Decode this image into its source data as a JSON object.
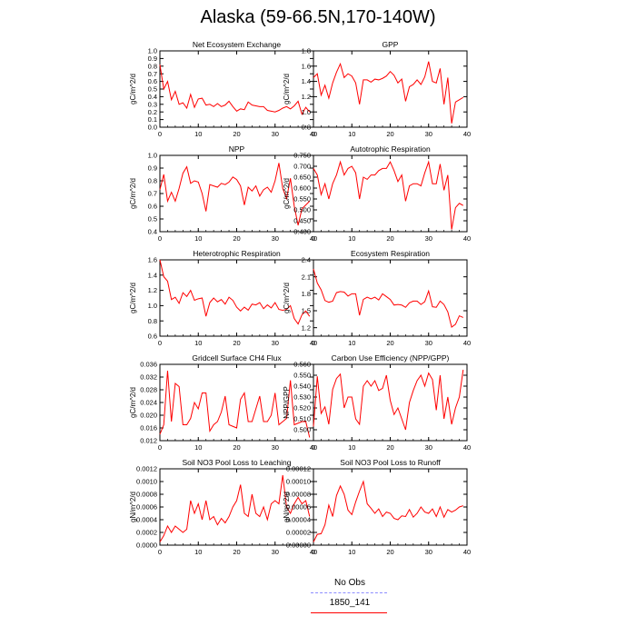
{
  "page": {
    "title": "Alaska (59-66.5N,170-140W)"
  },
  "legend": {
    "entries": [
      {
        "label": "No Obs",
        "color": "#8c8cff",
        "style": "dashed"
      },
      {
        "label": "1850_141",
        "color": "#ff0000",
        "style": "solid"
      }
    ]
  },
  "chart_data": [
    {
      "type": "line",
      "title": "Net Ecosystem Exchange",
      "xlabel": "",
      "ylabel": "gC/m^2/d",
      "xlim": [
        0,
        40
      ],
      "ylim": [
        0.0,
        1.0
      ],
      "xticks": [
        "0",
        "10",
        "20",
        "30",
        "40"
      ],
      "yticks": [
        "0.0",
        "0.1",
        "0.2",
        "0.3",
        "0.4",
        "0.5",
        "0.6",
        "0.7",
        "0.8",
        "0.9",
        "1.0"
      ],
      "series": [
        {
          "name": "1850_141",
          "color": "#ff0000",
          "values": [
            0.82,
            0.5,
            0.6,
            0.36,
            0.47,
            0.3,
            0.32,
            0.25,
            0.43,
            0.26,
            0.37,
            0.38,
            0.29,
            0.3,
            0.27,
            0.31,
            0.27,
            0.29,
            0.34,
            0.27,
            0.21,
            0.24,
            0.23,
            0.33,
            0.29,
            0.28,
            0.27,
            0.27,
            0.22,
            0.21,
            0.2,
            0.22,
            0.25,
            0.27,
            0.24,
            0.28,
            0.34,
            0.17,
            0.26,
            0.2
          ]
        }
      ]
    },
    {
      "type": "line",
      "title": "GPP",
      "xlabel": "",
      "ylabel": "gC/m^2/d",
      "xlim": [
        0,
        40
      ],
      "ylim": [
        0.8,
        1.8
      ],
      "xticks": [
        "0",
        "10",
        "20",
        "30",
        "40"
      ],
      "yticks": [
        "0.8",
        "1.0",
        "1.2",
        "1.4",
        "1.6",
        "1.8"
      ],
      "series": [
        {
          "name": "1850_141",
          "color": "#ff0000",
          "values": [
            1.45,
            1.5,
            1.22,
            1.35,
            1.18,
            1.38,
            1.52,
            1.63,
            1.45,
            1.5,
            1.47,
            1.38,
            1.1,
            1.42,
            1.42,
            1.39,
            1.43,
            1.42,
            1.44,
            1.47,
            1.53,
            1.48,
            1.38,
            1.43,
            1.14,
            1.33,
            1.36,
            1.42,
            1.36,
            1.46,
            1.66,
            1.4,
            1.38,
            1.57,
            1.1,
            1.45,
            0.85,
            1.13,
            1.16,
            1.19
          ]
        }
      ]
    },
    {
      "type": "line",
      "title": "NPP",
      "xlabel": "",
      "ylabel": "gC/m^2/d",
      "xlim": [
        0,
        40
      ],
      "ylim": [
        0.4,
        1.0
      ],
      "xticks": [
        "0",
        "10",
        "20",
        "30",
        "40"
      ],
      "yticks": [
        "0.4",
        "0.5",
        "0.6",
        "0.7",
        "0.8",
        "0.9",
        "1.0"
      ],
      "series": [
        {
          "name": "1850_141",
          "color": "#ff0000",
          "values": [
            0.73,
            0.85,
            0.64,
            0.71,
            0.64,
            0.74,
            0.86,
            0.91,
            0.78,
            0.8,
            0.79,
            0.7,
            0.56,
            0.77,
            0.76,
            0.75,
            0.78,
            0.77,
            0.79,
            0.83,
            0.81,
            0.76,
            0.61,
            0.75,
            0.72,
            0.76,
            0.68,
            0.73,
            0.75,
            0.71,
            0.8,
            0.94,
            0.74,
            0.66,
            0.82,
            0.6,
            0.45,
            0.58,
            0.61,
            0.64
          ]
        }
      ]
    },
    {
      "type": "line",
      "title": "Autotrophic Respiration",
      "xlabel": "",
      "ylabel": "gC/m^2/d",
      "xlim": [
        0,
        40
      ],
      "ylim": [
        0.4,
        0.75
      ],
      "xticks": [
        "0",
        "10",
        "20",
        "30",
        "40"
      ],
      "yticks": [
        "0.400",
        "0.450",
        "0.500",
        "0.550",
        "0.600",
        "0.650",
        "0.700",
        "0.750"
      ],
      "series": [
        {
          "name": "1850_141",
          "color": "#ff0000",
          "values": [
            0.69,
            0.66,
            0.57,
            0.62,
            0.55,
            0.62,
            0.66,
            0.72,
            0.66,
            0.69,
            0.7,
            0.67,
            0.55,
            0.65,
            0.64,
            0.66,
            0.66,
            0.68,
            0.69,
            0.69,
            0.72,
            0.68,
            0.63,
            0.66,
            0.54,
            0.61,
            0.62,
            0.62,
            0.61,
            0.67,
            0.72,
            0.62,
            0.62,
            0.71,
            0.59,
            0.66,
            0.41,
            0.51,
            0.53,
            0.52
          ]
        }
      ]
    },
    {
      "type": "line",
      "title": "Heterotrophic Respiration",
      "xlabel": "",
      "ylabel": "gC/m^2/d",
      "xlim": [
        0,
        40
      ],
      "ylim": [
        0.6,
        1.6
      ],
      "xticks": [
        "0",
        "10",
        "20",
        "30",
        "40"
      ],
      "yticks": [
        "0.6",
        "0.8",
        "1.0",
        "1.2",
        "1.4",
        "1.6"
      ],
      "series": [
        {
          "name": "1850_141",
          "color": "#ff0000",
          "values": [
            1.6,
            1.38,
            1.32,
            1.08,
            1.11,
            1.03,
            1.17,
            1.12,
            1.2,
            1.07,
            1.09,
            1.1,
            0.86,
            1.04,
            1.1,
            1.05,
            1.08,
            1.02,
            1.11,
            1.07,
            0.98,
            0.93,
            0.98,
            0.94,
            1.02,
            1.01,
            1.04,
            0.96,
            1.01,
            0.97,
            1.04,
            0.95,
            0.94,
            0.95,
            1.0,
            0.83,
            0.76,
            0.88,
            0.93,
            0.86
          ]
        }
      ]
    },
    {
      "type": "line",
      "title": "Ecosystem Respiration",
      "xlabel": "",
      "ylabel": "gC/m^2/d",
      "xlim": [
        0,
        40
      ],
      "ylim": [
        1.05,
        2.4
      ],
      "xticks": [
        "0",
        "10",
        "20",
        "30",
        "40"
      ],
      "yticks": [
        "1.2",
        "1.5",
        "1.8",
        "2.1",
        "2.4"
      ],
      "series": [
        {
          "name": "1850_141",
          "color": "#ff0000",
          "values": [
            2.24,
            1.99,
            1.87,
            1.68,
            1.65,
            1.67,
            1.82,
            1.84,
            1.83,
            1.76,
            1.8,
            1.8,
            1.42,
            1.7,
            1.74,
            1.71,
            1.74,
            1.69,
            1.8,
            1.75,
            1.7,
            1.6,
            1.61,
            1.6,
            1.56,
            1.64,
            1.67,
            1.67,
            1.61,
            1.66,
            1.85,
            1.57,
            1.56,
            1.67,
            1.61,
            1.48,
            1.21,
            1.26,
            1.41,
            1.38
          ]
        }
      ]
    },
    {
      "type": "line",
      "title": "Gridcell Surface CH4 Flux",
      "xlabel": "",
      "ylabel": "gC/m^2/d",
      "xlim": [
        0,
        40
      ],
      "ylim": [
        0.012,
        0.036
      ],
      "xticks": [
        "0",
        "10",
        "20",
        "30",
        "40"
      ],
      "yticks": [
        "0.012",
        "0.016",
        "0.020",
        "0.024",
        "0.028",
        "0.032",
        "0.036"
      ],
      "series": [
        {
          "name": "1850_141",
          "color": "#ff0000",
          "values": [
            0.014,
            0.017,
            0.034,
            0.018,
            0.03,
            0.029,
            0.017,
            0.017,
            0.019,
            0.024,
            0.022,
            0.027,
            0.027,
            0.015,
            0.017,
            0.018,
            0.021,
            0.026,
            0.017,
            0.0165,
            0.016,
            0.025,
            0.027,
            0.018,
            0.018,
            0.022,
            0.026,
            0.018,
            0.018,
            0.02,
            0.027,
            0.017,
            0.018,
            0.019,
            0.031,
            0.017,
            0.0175,
            0.018,
            0.018,
            0.013
          ]
        }
      ]
    },
    {
      "type": "line",
      "title": "Carbon Use Efficiency (NPP/GPP)",
      "xlabel": "",
      "ylabel": "NPP/GPP",
      "xlim": [
        0,
        40
      ],
      "ylim": [
        0.49,
        0.56
      ],
      "xticks": [
        "0",
        "10",
        "20",
        "30",
        "40"
      ],
      "yticks": [
        "0.500",
        "0.510",
        "0.520",
        "0.530",
        "0.540",
        "0.550",
        "0.560"
      ],
      "series": [
        {
          "name": "1850_141",
          "color": "#ff0000",
          "values": [
            0.503,
            0.549,
            0.515,
            0.521,
            0.505,
            0.537,
            0.547,
            0.551,
            0.52,
            0.53,
            0.53,
            0.51,
            0.505,
            0.54,
            0.545,
            0.54,
            0.545,
            0.536,
            0.538,
            0.55,
            0.527,
            0.514,
            0.52,
            0.51,
            0.5,
            0.525,
            0.536,
            0.545,
            0.55,
            0.54,
            0.552,
            0.546,
            0.518,
            0.55,
            0.51,
            0.53,
            0.505,
            0.52,
            0.53,
            0.555
          ]
        }
      ]
    },
    {
      "type": "line",
      "title": "Soil NO3 Pool Loss to Leaching",
      "xlabel": "",
      "ylabel": "gN/m^2/d",
      "xlim": [
        0,
        40
      ],
      "ylim": [
        0.0,
        0.0012
      ],
      "xticks": [
        "0",
        "10",
        "20",
        "30",
        "40"
      ],
      "yticks": [
        "0.0000",
        "0.0002",
        "0.0004",
        "0.0006",
        "0.0008",
        "0.0010",
        "0.0012"
      ],
      "series": [
        {
          "name": "1850_141",
          "color": "#ff0000",
          "values": [
            5e-05,
            0.00015,
            0.0003,
            0.0002,
            0.0003,
            0.00025,
            0.0002,
            0.00025,
            0.0007,
            0.0005,
            0.00065,
            0.0004,
            0.0007,
            0.0004,
            0.00045,
            0.00032,
            0.00042,
            0.00035,
            0.00045,
            0.0006,
            0.0007,
            0.00095,
            0.0005,
            0.00045,
            0.0008,
            0.0005,
            0.00045,
            0.0006,
            0.0004,
            0.00065,
            0.0007,
            0.00065,
            0.0011,
            0.0006,
            0.0005,
            0.00065,
            0.00075,
            0.00065,
            0.0007,
            0.00045
          ]
        }
      ]
    },
    {
      "type": "line",
      "title": "Soil NO3 Pool Loss to Runoff",
      "xlabel": "",
      "ylabel": "gN/m^2/d",
      "xlim": [
        0,
        40
      ],
      "ylim": [
        0.0,
        0.00012
      ],
      "xticks": [
        "0",
        "10",
        "20",
        "30",
        "40"
      ],
      "yticks": [
        "0.00000",
        "0.00002",
        "0.00004",
        "0.00006",
        "0.00008",
        "0.00010",
        "0.00012"
      ],
      "series": [
        {
          "name": "1850_141",
          "color": "#ff0000",
          "values": [
            5e-06,
            1.7e-05,
            1.8e-05,
            3.2e-05,
            6.3e-05,
            4.5e-05,
            7.8e-05,
            9.3e-05,
            8e-05,
            5.5e-05,
            4.8e-05,
            6.8e-05,
            8.5e-05,
            0.0001,
            6.5e-05,
            5.8e-05,
            5e-05,
            5.7e-05,
            4.5e-05,
            5.2e-05,
            5e-05,
            4.2e-05,
            4e-05,
            4.6e-05,
            4.5e-05,
            5.6e-05,
            4.4e-05,
            5e-05,
            6e-05,
            5.2e-05,
            5e-05,
            5.7e-05,
            4.5e-05,
            6e-05,
            4.4e-05,
            5.6e-05,
            5.2e-05,
            5.5e-05,
            6e-05,
            6.2e-05
          ]
        }
      ]
    }
  ]
}
